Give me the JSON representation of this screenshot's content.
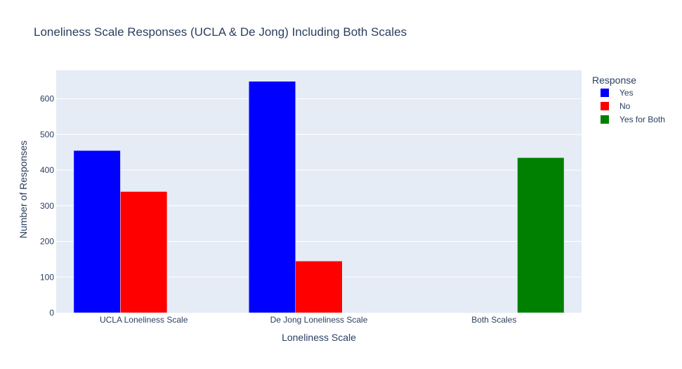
{
  "chart_data": {
    "type": "bar",
    "title": "Loneliness Scale Responses (UCLA & De Jong) Including Both Scales",
    "xlabel": "Loneliness Scale",
    "ylabel": "Number of Responses",
    "categories": [
      "UCLA Loneliness Scale",
      "De Jong Loneliness Scale",
      "Both Scales"
    ],
    "ylim": [
      0,
      680
    ],
    "yticks": [
      0,
      100,
      200,
      300,
      400,
      500,
      600
    ],
    "ytick_labels": [
      "0",
      "100",
      "200",
      "300",
      "400",
      "500",
      "600"
    ],
    "grid": true,
    "legend_title": "Response",
    "legend_position": "top-right",
    "series": [
      {
        "name": "Yes",
        "color": "#0000ff",
        "values": [
          455,
          649,
          null
        ]
      },
      {
        "name": "No",
        "color": "#ff0000",
        "values": [
          340,
          145,
          null
        ]
      },
      {
        "name": "Yes for Both",
        "color": "#008000",
        "values": [
          null,
          null,
          435
        ]
      }
    ]
  },
  "colors": {
    "plot_background": "#e5ecf6",
    "grid": "#ffffff",
    "text": "#2a3f5f"
  }
}
